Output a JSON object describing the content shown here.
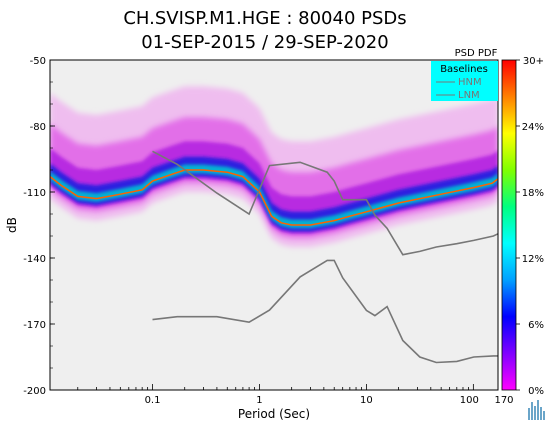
{
  "chart_data": {
    "type": "heatmap",
    "title_line1": "CH.SVISP.M1.HGE : 80040 PSDs",
    "title_line2": "01-SEP-2015 / 29-SEP-2020",
    "xlabel": "Period (Sec)",
    "ylabel": "dB",
    "x_scale": "log",
    "xlim": [
      0.011,
      170
    ],
    "ylim": [
      -200,
      -50
    ],
    "x_ticks": [
      {
        "value": 0.1,
        "label": "0.1"
      },
      {
        "value": 1,
        "label": "1"
      },
      {
        "value": 10,
        "label": "10"
      },
      {
        "value": 100,
        "label": "100"
      },
      {
        "value": 170,
        "label": "170"
      }
    ],
    "y_ticks": [
      {
        "value": -50,
        "label": "-50"
      },
      {
        "value": -80,
        "label": "-80"
      },
      {
        "value": -110,
        "label": "-110"
      },
      {
        "value": -140,
        "label": "-140"
      },
      {
        "value": -170,
        "label": "-170"
      },
      {
        "value": -200,
        "label": "-200"
      }
    ],
    "legend": {
      "placement": "top-right",
      "title": "Baselines",
      "entries": [
        "HNM",
        "LNM"
      ],
      "background": "#00ffff"
    },
    "colorbar": {
      "title": "PSD PDF",
      "tick_labels": [
        "30+",
        "24%",
        "18%",
        "12%",
        "6%",
        "0%"
      ],
      "colors": [
        "#ff00ff",
        "#8000ff",
        "#0000ff",
        "#00a0ff",
        "#00ffff",
        "#00ff80",
        "#80ff00",
        "#ffff00",
        "#ff8000",
        "#ff0000"
      ]
    },
    "series": [
      {
        "name": "HNM",
        "color": "#777777",
        "x": [
          0.1,
          0.17,
          0.4,
          0.8,
          1.24,
          2.4,
          4.3,
          5,
          6,
          10,
          12,
          15.6,
          21.9,
          31.6,
          45,
          70,
          101,
          154,
          170
        ],
        "y": [
          -91.5,
          -97.4,
          -110.5,
          -120,
          -98,
          -96.5,
          -101,
          -105,
          -113.5,
          -113.5,
          -120.5,
          -126.5,
          -138.5,
          -137,
          -135,
          -133.5,
          -132,
          -130,
          -129
        ]
      },
      {
        "name": "LNM",
        "color": "#777777",
        "x": [
          0.1,
          0.17,
          0.4,
          0.8,
          1.24,
          2.4,
          4.3,
          5,
          6,
          10,
          12,
          15.6,
          21.9,
          31.6,
          45,
          70,
          101,
          154,
          170
        ],
        "y": [
          -168,
          -166.7,
          -166.7,
          -169.2,
          -163.7,
          -148.6,
          -141.1,
          -141.1,
          -149,
          -163.8,
          -166.2,
          -162.1,
          -177.5,
          -185,
          -187.5,
          -187,
          -185,
          -184.5,
          -184.5
        ]
      }
    ],
    "pdf_mode": {
      "x": [
        0.011,
        0.014,
        0.02,
        0.03,
        0.05,
        0.08,
        0.1,
        0.15,
        0.2,
        0.3,
        0.5,
        0.7,
        1,
        1.3,
        1.6,
        2,
        3,
        5,
        7,
        10,
        20,
        50,
        100,
        150,
        170
      ],
      "y": [
        -103,
        -107,
        -112,
        -113,
        -111,
        -109,
        -105,
        -102,
        -100,
        -100,
        -101,
        -103,
        -110,
        -121,
        -124,
        -125,
        -125,
        -123,
        -121,
        -119,
        -115,
        -111,
        -108,
        -106,
        -104
      ]
    },
    "pdf_level": 0.3
  }
}
